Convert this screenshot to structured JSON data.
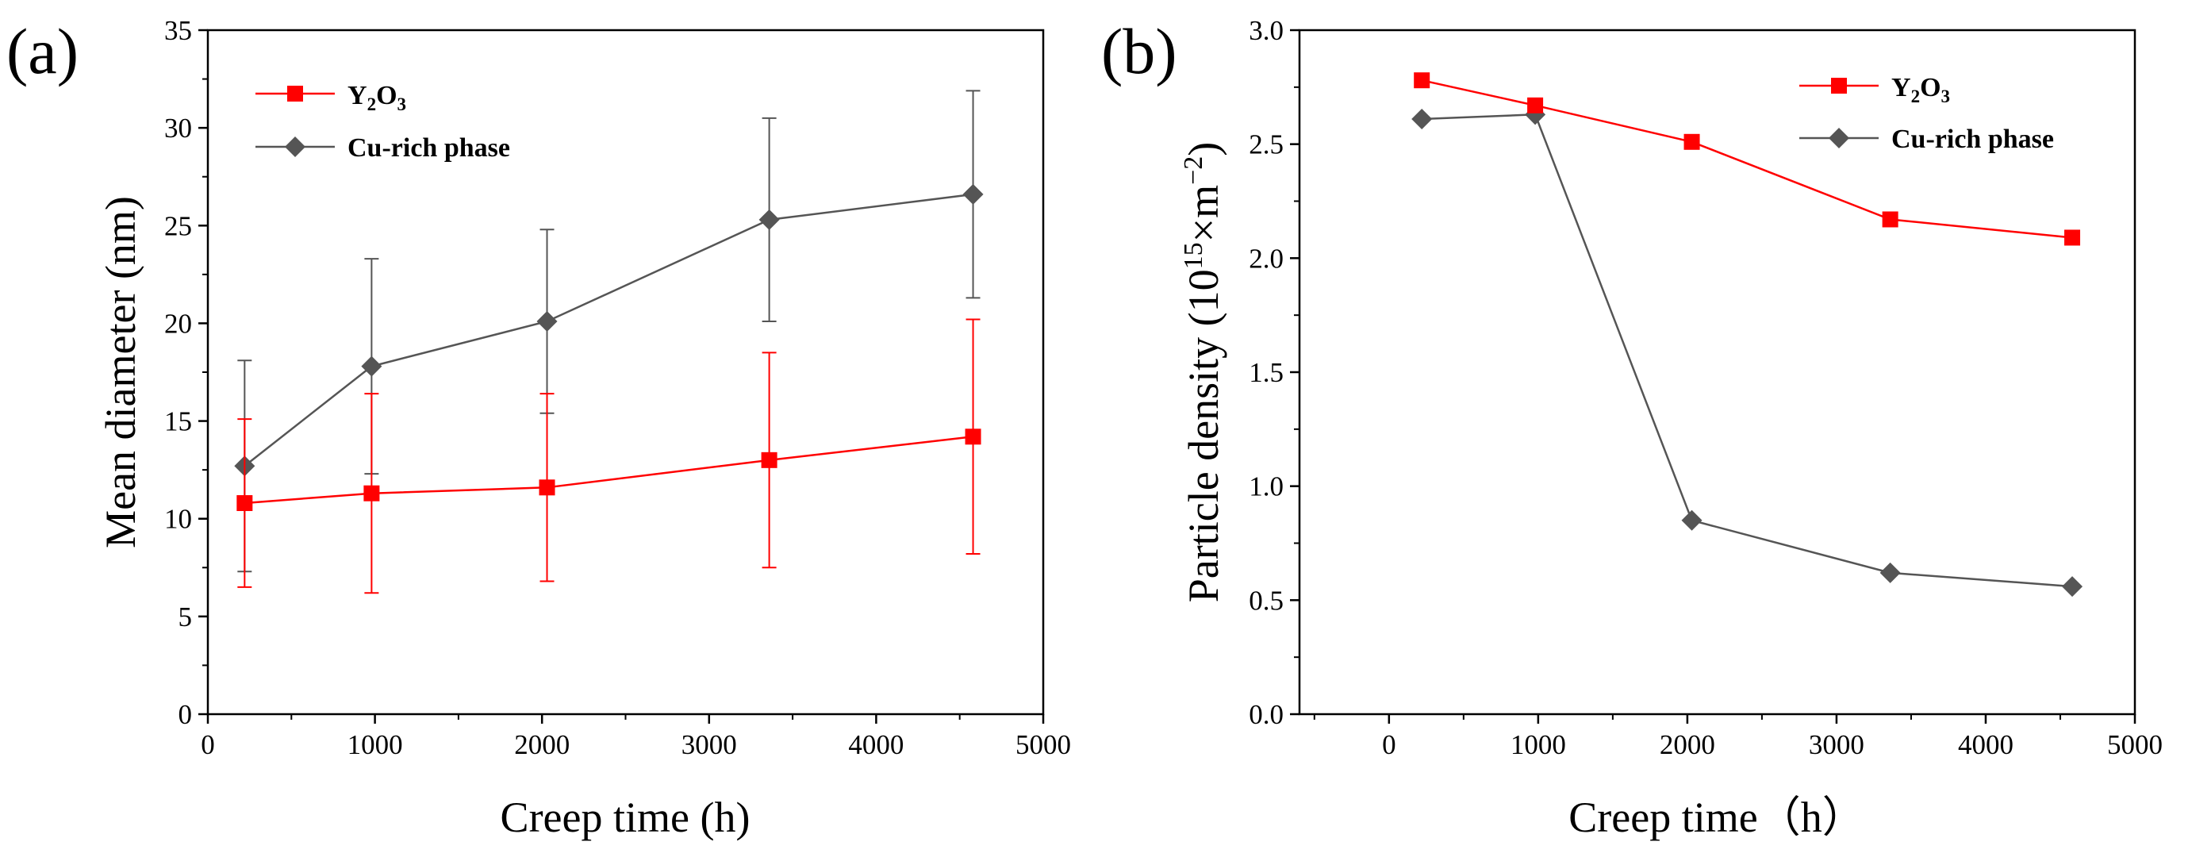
{
  "chart_data": [
    {
      "panel_label": "(a)",
      "type": "line",
      "xlabel": "Creep time (h)",
      "ylabel": "Mean diameter (nm)",
      "xlim": [
        0,
        5000
      ],
      "ylim": [
        0,
        35
      ],
      "xticks": [
        0,
        1000,
        2000,
        3000,
        4000,
        5000
      ],
      "yticks": [
        0,
        5,
        10,
        15,
        20,
        25,
        30,
        35
      ],
      "x_tick_labels": [
        "0",
        "1000",
        "2000",
        "3000",
        "4000",
        "5000"
      ],
      "y_tick_labels": [
        "0",
        "5",
        "10",
        "15",
        "20",
        "25",
        "30",
        "35"
      ],
      "grid": false,
      "legend_position": "top-left",
      "series": [
        {
          "name": "Y2O3",
          "legend_main": "Y",
          "legend_sub1": "2",
          "legend_mid": "O",
          "legend_sub2": "3",
          "color": "#ff0000",
          "marker": "square",
          "x": [
            220,
            980,
            2030,
            3360,
            4580
          ],
          "y": [
            10.8,
            11.3,
            11.6,
            13.0,
            14.2
          ],
          "error_lower": [
            6.5,
            6.2,
            6.8,
            7.5,
            8.2
          ],
          "error_upper": [
            15.1,
            16.4,
            16.4,
            18.5,
            20.2
          ]
        },
        {
          "name": "Cu-rich phase",
          "color": "#555555",
          "marker": "diamond",
          "x": [
            220,
            980,
            2030,
            3360,
            4580
          ],
          "y": [
            12.7,
            17.8,
            20.1,
            25.3,
            26.6
          ],
          "error_lower": [
            7.3,
            12.3,
            15.4,
            20.1,
            21.3
          ],
          "error_upper": [
            18.1,
            23.3,
            24.8,
            30.5,
            31.9
          ]
        }
      ]
    },
    {
      "panel_label": "(b)",
      "type": "line",
      "xlabel": "Creep time（h）",
      "ylabel_main": "Particle density (10",
      "ylabel_exp1": "15",
      "ylabel_mid": "×m",
      "ylabel_exp2": "−2",
      "ylabel_end": ")",
      "xlim": [
        -600,
        5000
      ],
      "ylim": [
        0,
        3.0
      ],
      "xticks": [
        0,
        1000,
        2000,
        3000,
        4000,
        5000
      ],
      "yticks": [
        0,
        0.5,
        1.0,
        1.5,
        2.0,
        2.5,
        3.0
      ],
      "x_tick_labels": [
        "0",
        "1000",
        "2000",
        "3000",
        "4000",
        "5000"
      ],
      "y_tick_labels": [
        "0.0",
        "0.5",
        "1.0",
        "1.5",
        "2.0",
        "2.5",
        "3.0"
      ],
      "grid": false,
      "legend_position": "top-right",
      "series": [
        {
          "name": "Y2O3",
          "legend_main": "Y",
          "legend_sub1": "2",
          "legend_mid": "O",
          "legend_sub2": "3",
          "color": "#ff0000",
          "marker": "square",
          "x": [
            220,
            980,
            2030,
            3360,
            4580
          ],
          "y": [
            2.78,
            2.67,
            2.51,
            2.17,
            2.09
          ]
        },
        {
          "name": "Cu-rich phase",
          "color": "#555555",
          "marker": "diamond",
          "x": [
            220,
            980,
            2030,
            3360,
            4580
          ],
          "y": [
            2.61,
            2.63,
            0.85,
            0.62,
            0.56
          ]
        }
      ]
    }
  ]
}
